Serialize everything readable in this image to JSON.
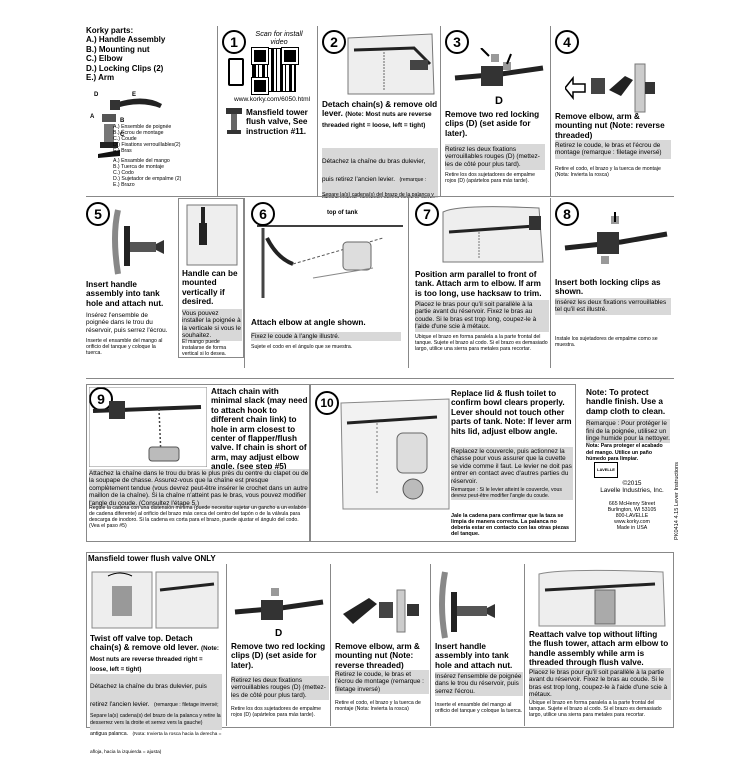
{
  "parts": {
    "title": "Korky parts:",
    "items": [
      "A.) Handle Assembly",
      "B.) Mounting nut",
      "C.) Elbow",
      "D.) Locking Clips (2)",
      "E.) Arm"
    ],
    "fr": [
      "A.) Ensemble de poignée",
      "B.) Écrou de montage",
      "C.) Coude",
      "D.) Fixations verrouillables(2)",
      "E.) Bras"
    ],
    "es": [
      "A.) Ensamble del mango",
      "B.) Tuerca de montaje",
      "C.) Codo",
      "D.) Sujetador de empalme (2)",
      "E.) Brazo"
    ],
    "labels": [
      "D",
      "E",
      "A",
      "B",
      "C"
    ]
  },
  "step1": {
    "num": "1",
    "scan": "Scan for install video",
    "url": "www.korky.com/6050.html",
    "note": "Mansfield tower flush valve, See instruction #11."
  },
  "step2": {
    "num": "2",
    "en": "Detach chain(s) & remove old lever.",
    "en_note": "(Note: Most nuts are reverse threaded right = loose, left = tight)",
    "fr": "Détachez la chaîne du bras dulevier, puis retirez l'ancien levier.",
    "fr_note": "(remarque : filetage inversé; desserrez vers la droite et serrez vers la gauche)",
    "es": "Separe la(s) cadena(s) del brazo de la palanca y retire la antigua palanca.",
    "es_note": "(Nota: Invierta la rosca hacia la derecha = afloja, hacia la izquierda = ajusta)"
  },
  "step3": {
    "num": "3",
    "label": "D",
    "en": "Remove two red locking clips (D) (set aside for later).",
    "fr": "Retirez les deux fixations verrouillables rouges (D) (mettez-les de côté pour plus tard).",
    "es": "Retire los dos sujetadores de empalme rojos (D) (apártelos para más tarde)."
  },
  "step4": {
    "num": "4",
    "en": "Remove elbow, arm & mounting nut (Note: reverse threaded)",
    "fr": "Retirez le coude, le bras et l'écrou de montage (remarque : filetage inversé)",
    "es": "Retire el codo, el brazo y la tuerca de montaje (Nota: Invierta la rosca)"
  },
  "step5": {
    "num": "5",
    "en": "Insert handle assembly into tank hole and attach nut.",
    "fr": "Insérez l'ensemble de poignée dans le trou du réservoir, puis serrez l'écrou.",
    "es": "Inserte el ensamble del mango al orificio del tanque y coloque la tuerca."
  },
  "handle_box": {
    "en": "Handle can be mounted vertically if desired.",
    "fr": "Vous pouvez installer la poignée à la verticale si vous le souhaitez.",
    "es": "El mango puede instalarse de forma vertical si lo desea."
  },
  "step6": {
    "num": "6",
    "label": "top of tank",
    "en": "Attach elbow at angle shown.",
    "fr": "Fixez le coude à l'angle illustré.",
    "es": "Sujete el codo en el ángulo que se muestra."
  },
  "step7": {
    "num": "7",
    "en": "Position arm parallel to front of tank. Attach arm to elbow. If arm is too long, use hacksaw to trim.",
    "fr": "Placez le bras pour qu'il soit parallèle à la partie avant du réservoir. Fixez le bras au coude. Si le bras est trop long, coupez-le à l'aide d'une scie à métaux.",
    "es": "Ubique el brazo en forma paralela a la parte frontal del tanque. Sujete el brazo al codo. Si el brazo es demasiado largo, utilice una sierra para metales para recortar."
  },
  "step8": {
    "num": "8",
    "en": "Insert both locking clips as shown.",
    "fr": "Insérez les deux fixations verrouillables tel qu'il est illustré.",
    "es": "Instale los sujetadores de empalme como se muestra."
  },
  "step9": {
    "num": "9",
    "en": "Attach chain with minimal slack (may need to attach hook to different chain link) to hole in arm closest to center of flapper/flush valve. If chain is short of arm, may adjust elbow angle. (see step #5)",
    "fr": "Attachez la chaîne dans le trou du bras le plus près du centre du clapet ou de la soupape de chasse. Assurez-vous que la chaîne est presque complètement tendue (vous devrez peut-être insérer le crochet dans un autre maillon de la chaîne). Si la chaîne n'atteint pas le bras, vous pouvez modifier l'angle du coude. (Consultez l'étape 5.)",
    "es": "Regule la cadena con una distensión mínima (puede necesitar sujetar un gancho a un eslabón de cadena diferente) al orificio del brazo más cerca del centro del tapón o de la válvula para descarga de inodoro. Si la cadena es corta para el brazo, puede ajustar el ángulo del codo. (Vea el paso #5)"
  },
  "step10": {
    "num": "10",
    "en": "Replace lid & flush toilet to confirm bowl clears properly. Lever should not touch other parts of tank. Note: If lever arm hits lid, adjust elbow angle.",
    "fr": "Replacez le couvercle, puis actionnez la chasse pour vous assurer que la cuvette se vide comme il faut. Le levier ne doit pas entrer en contact avec d'autres parties du réservoir.",
    "fr_note": "Remarque : Si le levier atteint le couvercle, vous devrez peut-être modifier l'angle du coude.",
    "es": "Jale la cadena para confirmar que la taza se limpia de manera correcta. La palanca no debería estar en contacto con las otras piezas del tanque."
  },
  "protect": {
    "en": "Note: To protect handle finish. Use a damp cloth to clean.",
    "fr": "Remarque : Pour protéger le fini de la poignée, utilisez un linge humide pour la nettoyer.",
    "es": "Nota: Para proteger el acabado del mango. Utilice un paño húmedo para limpiar."
  },
  "company": {
    "logo": "LAVELLE",
    "copyright": "©2015",
    "name": "Lavelle Industries, Inc.",
    "address": [
      "665 McHenry Street",
      "Burlington, WI 53105",
      "800-LAVELLE",
      "www.korky.com",
      "Made in USA"
    ],
    "code": "PK0414 4.15 Lever Instructions"
  },
  "mansfield": {
    "header": "Mansfield tower flush valve ONLY",
    "p1_en": "Twist off valve top. Detach chain(s) & remove old lever.",
    "p1_note": "(Note: Most nuts are reverse threaded right = loose, left = tight)",
    "p1_fr": "Détachez la chaîne du bras dulevier, puis retirez l'ancien levier.",
    "p1_fr_note": "(remarque : filetage inversé; desserrez vers la droite et serrez vers la gauche)",
    "p1_es": "Separe la(s) cadena(s) del brazo de la palanca y retire la antigua palanca.",
    "p1_es_note": "(Nota: Invierta la rosca hacia la derecha = afloja, hacia la izquierda = ajusta)",
    "p2_label": "D",
    "p2_en": "Remove two red locking clips (D) (set aside for later).",
    "p2_fr": "Retirez les deux fixations verrouillables rouges (D) (mettez-les de côté pour plus tard).",
    "p2_es": "Retire los dos sujetadores de empalme rojos (D) (apártelos para más tarde).",
    "p3_en": "Remove elbow, arm & mounting nut (Note: reverse threaded)",
    "p3_fr": "Retirez le coude, le bras et l'écrou de montage (remarque : filetage inversé)",
    "p3_es": "Retire el codo, el brazo y la tuerca de montaje (Nota: Invierta la rosca)",
    "p4_en": "Insert handle assembly into tank hole and attach nut.",
    "p4_fr": "Insérez l'ensemble de poignée dans le trou du réservoir, puis serrez l'écrou.",
    "p4_es": "Inserte el ensamble del mango al orificio del tanque y coloque la tuerca.",
    "p5_en": "Reattach valve top without lifting the flush tower, attach arm elbow to handle assembly while arm is threaded through flush valve.",
    "p5_fr": "Placez le bras pour qu'il soit parallèle à la partie avant du réservoir. Fixez le bras au coude. Si le bras est trop long, coupez-le à l'aide d'une scie à métaux.",
    "p5_es": "Ubique el brazo en forma paralela a la parte frontal del tanque. Sujete el brazo al codo. Si el brazo es demasiado largo, utilice una sierra para metales para recortar."
  }
}
